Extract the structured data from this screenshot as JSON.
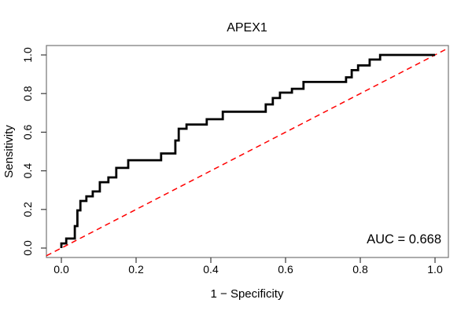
{
  "page": {
    "background_color": "#ffffff"
  },
  "chart_data": {
    "type": "line",
    "subtype": "roc-step-curve",
    "title": "APEX1",
    "xlabel": "1 − Specificity",
    "ylabel": "Sensitivity",
    "xlim": [
      0.0,
      1.0
    ],
    "ylim": [
      0.0,
      1.0
    ],
    "grid": false,
    "legend": "none",
    "x_ticks": [
      {
        "value": 0.0,
        "label": "0.0"
      },
      {
        "value": 0.2,
        "label": "0.2"
      },
      {
        "value": 0.4,
        "label": "0.4"
      },
      {
        "value": 0.6,
        "label": "0.6"
      },
      {
        "value": 0.8,
        "label": "0.8"
      },
      {
        "value": 1.0,
        "label": "1.0"
      }
    ],
    "y_ticks": [
      {
        "value": 0.0,
        "label": "0.0"
      },
      {
        "value": 0.2,
        "label": "0.2"
      },
      {
        "value": 0.4,
        "label": "0.4"
      },
      {
        "value": 0.6,
        "label": "0.6"
      },
      {
        "value": 0.8,
        "label": "0.8"
      },
      {
        "value": 1.0,
        "label": "1.0"
      }
    ],
    "annotation": {
      "auc_label": "AUC = 0.668",
      "auc_value": 0.668
    },
    "roc_curve": {
      "name": "APEX1 ROC curve",
      "color": "#000000",
      "points": [
        [
          0.0,
          0.0
        ],
        [
          0.0,
          0.024
        ],
        [
          0.013,
          0.024
        ],
        [
          0.013,
          0.049
        ],
        [
          0.036,
          0.049
        ],
        [
          0.036,
          0.114
        ],
        [
          0.043,
          0.114
        ],
        [
          0.043,
          0.195
        ],
        [
          0.051,
          0.195
        ],
        [
          0.051,
          0.244
        ],
        [
          0.067,
          0.244
        ],
        [
          0.067,
          0.268
        ],
        [
          0.084,
          0.268
        ],
        [
          0.084,
          0.293
        ],
        [
          0.103,
          0.293
        ],
        [
          0.103,
          0.341
        ],
        [
          0.126,
          0.341
        ],
        [
          0.126,
          0.366
        ],
        [
          0.147,
          0.366
        ],
        [
          0.147,
          0.415
        ],
        [
          0.179,
          0.415
        ],
        [
          0.179,
          0.455
        ],
        [
          0.267,
          0.455
        ],
        [
          0.267,
          0.49
        ],
        [
          0.305,
          0.49
        ],
        [
          0.305,
          0.557
        ],
        [
          0.314,
          0.557
        ],
        [
          0.314,
          0.618
        ],
        [
          0.335,
          0.618
        ],
        [
          0.335,
          0.64
        ],
        [
          0.389,
          0.64
        ],
        [
          0.389,
          0.667
        ],
        [
          0.432,
          0.667
        ],
        [
          0.432,
          0.706
        ],
        [
          0.547,
          0.706
        ],
        [
          0.547,
          0.744
        ],
        [
          0.566,
          0.744
        ],
        [
          0.566,
          0.777
        ],
        [
          0.585,
          0.777
        ],
        [
          0.585,
          0.805
        ],
        [
          0.617,
          0.805
        ],
        [
          0.617,
          0.825
        ],
        [
          0.648,
          0.825
        ],
        [
          0.648,
          0.86
        ],
        [
          0.762,
          0.86
        ],
        [
          0.762,
          0.884
        ],
        [
          0.777,
          0.884
        ],
        [
          0.777,
          0.921
        ],
        [
          0.794,
          0.921
        ],
        [
          0.794,
          0.946
        ],
        [
          0.825,
          0.946
        ],
        [
          0.825,
          0.976
        ],
        [
          0.853,
          0.976
        ],
        [
          0.853,
          1.0
        ],
        [
          1.0,
          1.0
        ]
      ]
    },
    "diagonal_reference": {
      "name": "chance line",
      "color": "#ff0000",
      "style": "dashed",
      "from": [
        0.0,
        0.0
      ],
      "to": [
        1.0,
        1.0
      ]
    }
  }
}
